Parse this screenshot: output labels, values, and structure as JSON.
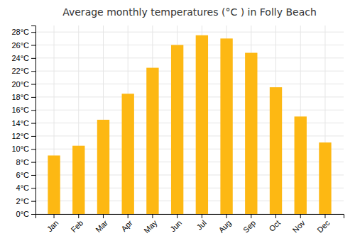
{
  "chart_data": {
    "type": "bar",
    "title": "Average monthly temperatures (°C ) in Folly Beach",
    "categories": [
      "Jan",
      "Feb",
      "Mar",
      "Apr",
      "May",
      "Jun",
      "Jul",
      "Aug",
      "Sep",
      "Oct",
      "Nov",
      "Dec"
    ],
    "values": [
      9,
      10.5,
      14.5,
      18.5,
      22.5,
      26,
      27.5,
      27,
      24.8,
      19.5,
      15,
      11
    ],
    "color": "#FDB813",
    "ylim": [
      0,
      29
    ],
    "yticks": [
      {
        "value": 0,
        "label": "0°C"
      },
      {
        "value": 2,
        "label": "2°C"
      },
      {
        "value": 4,
        "label": "4°C"
      },
      {
        "value": 6,
        "label": "6°C"
      },
      {
        "value": 8,
        "label": "8°C"
      },
      {
        "value": 10,
        "label": "10°C"
      },
      {
        "value": 12,
        "label": "12°C"
      },
      {
        "value": 14,
        "label": "14°C"
      },
      {
        "value": 16,
        "label": "16°C"
      },
      {
        "value": 18,
        "label": "18°C"
      },
      {
        "value": 20,
        "label": "20°C"
      },
      {
        "value": 22,
        "label": "22°C"
      },
      {
        "value": 24,
        "label": "24°C"
      },
      {
        "value": 26,
        "label": "26°C"
      },
      {
        "value": 28,
        "label": "28°C"
      }
    ],
    "grid": true
  }
}
